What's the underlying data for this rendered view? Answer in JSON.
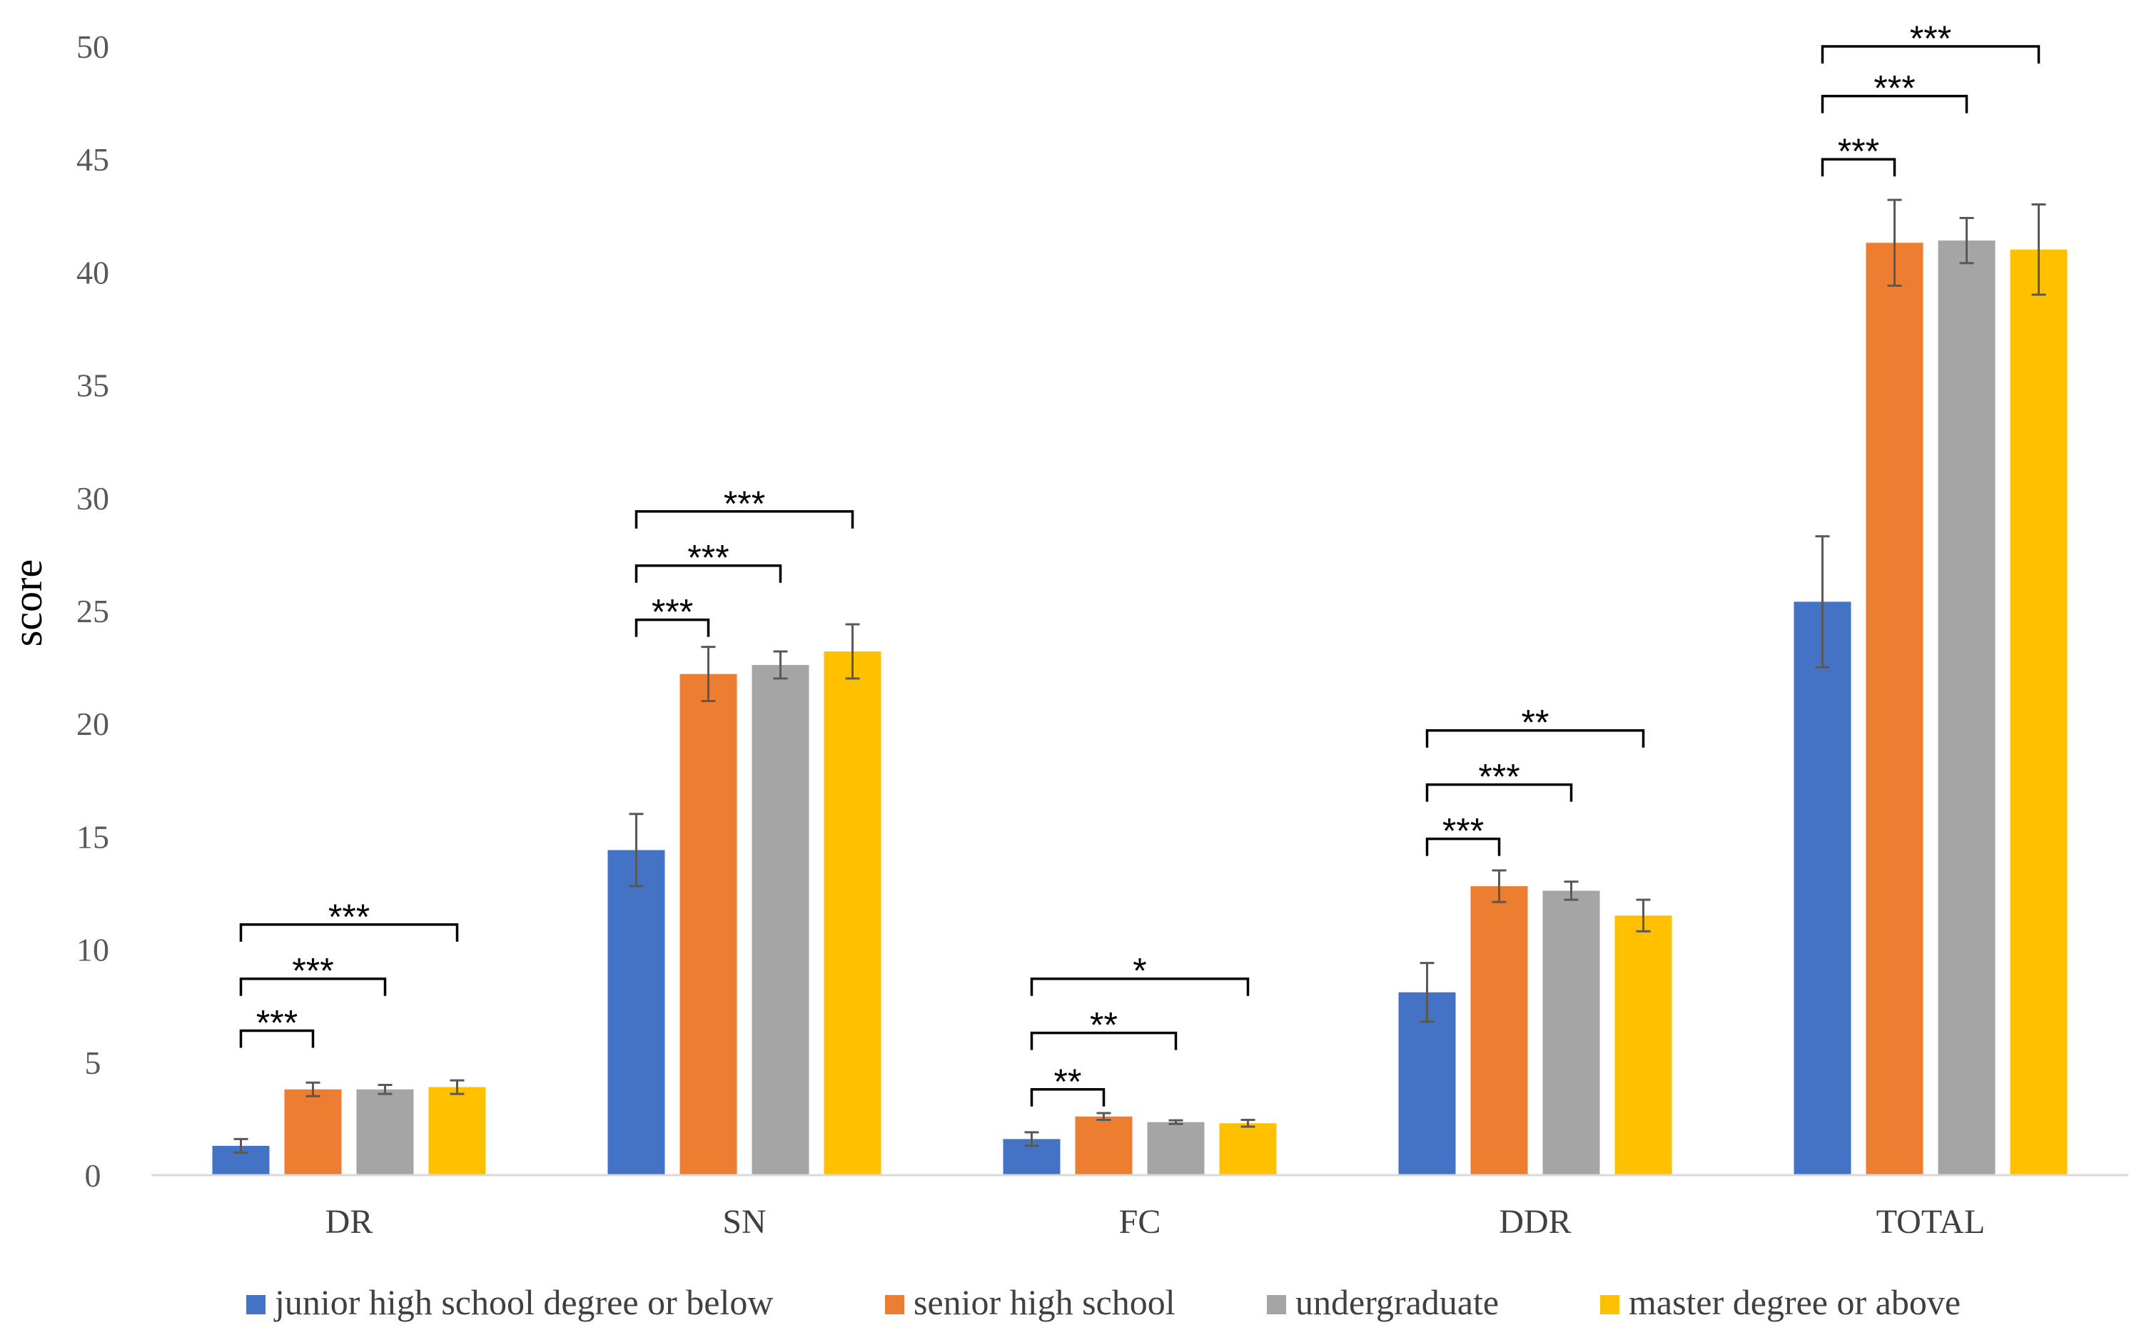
{
  "chart_data": {
    "type": "bar",
    "title": "",
    "xlabel": "",
    "ylabel": "score",
    "ylim": [
      0,
      50
    ],
    "yticks": [
      0,
      5,
      10,
      15,
      20,
      25,
      30,
      35,
      40,
      45,
      50
    ],
    "grid": false,
    "legend_position": "bottom",
    "categories": [
      "DR",
      "SN",
      "FC",
      "DDR",
      "TOTAL"
    ],
    "series": [
      {
        "name": "junior high school degree or below",
        "color": "#4472C4",
        "values": [
          1.3,
          14.4,
          1.6,
          8.1,
          25.4
        ],
        "errors": [
          0.3,
          1.6,
          0.3,
          1.3,
          2.9
        ]
      },
      {
        "name": "senior high school",
        "color": "#ED7D31",
        "values": [
          3.8,
          22.2,
          2.6,
          12.8,
          41.3
        ],
        "errors": [
          0.3,
          1.2,
          0.15,
          0.7,
          1.9
        ]
      },
      {
        "name": "undergraduate",
        "color": "#A5A5A5",
        "values": [
          3.8,
          22.6,
          2.35,
          12.6,
          41.4
        ],
        "errors": [
          0.2,
          0.6,
          0.08,
          0.4,
          1.0
        ]
      },
      {
        "name": "master degree or above",
        "color": "#FFC000",
        "values": [
          3.9,
          23.2,
          2.3,
          11.5,
          41.0
        ],
        "errors": [
          0.3,
          1.2,
          0.15,
          0.7,
          2.0
        ]
      }
    ],
    "significance": [
      {
        "category": 0,
        "from": 0,
        "to": 1,
        "label": "***",
        "level": 6.4
      },
      {
        "category": 0,
        "from": 0,
        "to": 2,
        "label": "***",
        "level": 8.7
      },
      {
        "category": 0,
        "from": 0,
        "to": 3,
        "label": "***",
        "level": 11.1
      },
      {
        "category": 1,
        "from": 0,
        "to": 1,
        "label": "***",
        "level": 24.6
      },
      {
        "category": 1,
        "from": 0,
        "to": 2,
        "label": "***",
        "level": 27.0
      },
      {
        "category": 1,
        "from": 0,
        "to": 3,
        "label": "***",
        "level": 29.4
      },
      {
        "category": 2,
        "from": 0,
        "to": 1,
        "label": "**",
        "level": 3.8
      },
      {
        "category": 2,
        "from": 0,
        "to": 2,
        "label": "**",
        "level": 6.3
      },
      {
        "category": 2,
        "from": 0,
        "to": 3,
        "label": "*",
        "level": 8.7
      },
      {
        "category": 3,
        "from": 0,
        "to": 1,
        "label": "***",
        "level": 14.9
      },
      {
        "category": 3,
        "from": 0,
        "to": 2,
        "label": "***",
        "level": 17.3
      },
      {
        "category": 3,
        "from": 0,
        "to": 3,
        "label": "**",
        "level": 19.7
      },
      {
        "category": 4,
        "from": 0,
        "to": 1,
        "label": "***",
        "level": 45.0
      },
      {
        "category": 4,
        "from": 0,
        "to": 2,
        "label": "***",
        "level": 47.8
      },
      {
        "category": 4,
        "from": 0,
        "to": 3,
        "label": "***",
        "level": 50.0
      }
    ]
  }
}
